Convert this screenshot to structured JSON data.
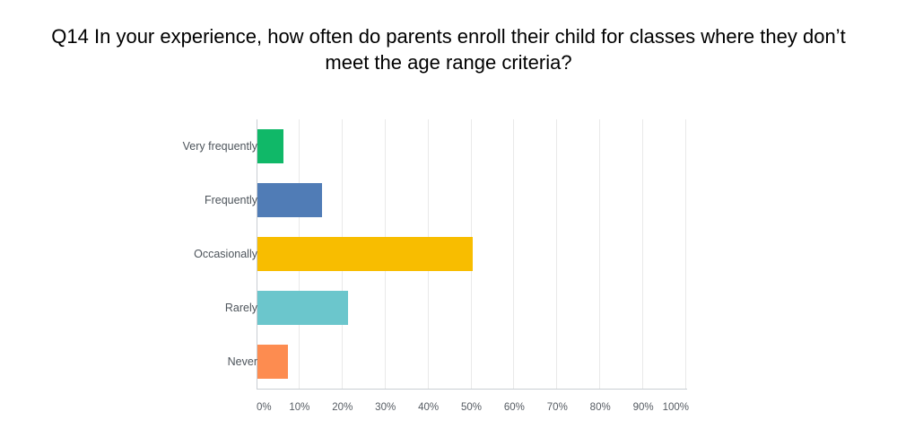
{
  "header": {
    "title_lines": [
      "Q14 In your experience, how often do parents enroll their child for classes where they don’t",
      "meet the age range criteria?"
    ]
  },
  "chart_data": {
    "type": "bar",
    "orientation": "horizontal",
    "title": "Q14 In your experience, how often do parents enroll their child for classes where they don’t meet the age range criteria?",
    "categories": [
      "Very frequently",
      "Frequently",
      "Occasionally",
      "Rarely",
      "Never"
    ],
    "values": [
      6,
      15,
      50,
      21,
      7
    ],
    "value_unit": "%",
    "xlim": [
      0,
      100
    ],
    "x_tick_labels": [
      "0%",
      "10%",
      "20%",
      "30%",
      "40%",
      "50%",
      "60%",
      "70%",
      "80%",
      "90%",
      "100%"
    ],
    "grid": "vertical-gridlines-every-10-percent",
    "legend": "none",
    "bar_colors": [
      "#10B868",
      "#507CB6",
      "#F8BD00",
      "#6BC6CC",
      "#FD8C50"
    ],
    "colors": {
      "background": "#ffffff",
      "title_text": "#000000",
      "category_label_text": "#4d545b",
      "tick_label_text": "#555b62",
      "gridline": "#e9e9e9",
      "axis_line": "#c9ced3"
    }
  }
}
